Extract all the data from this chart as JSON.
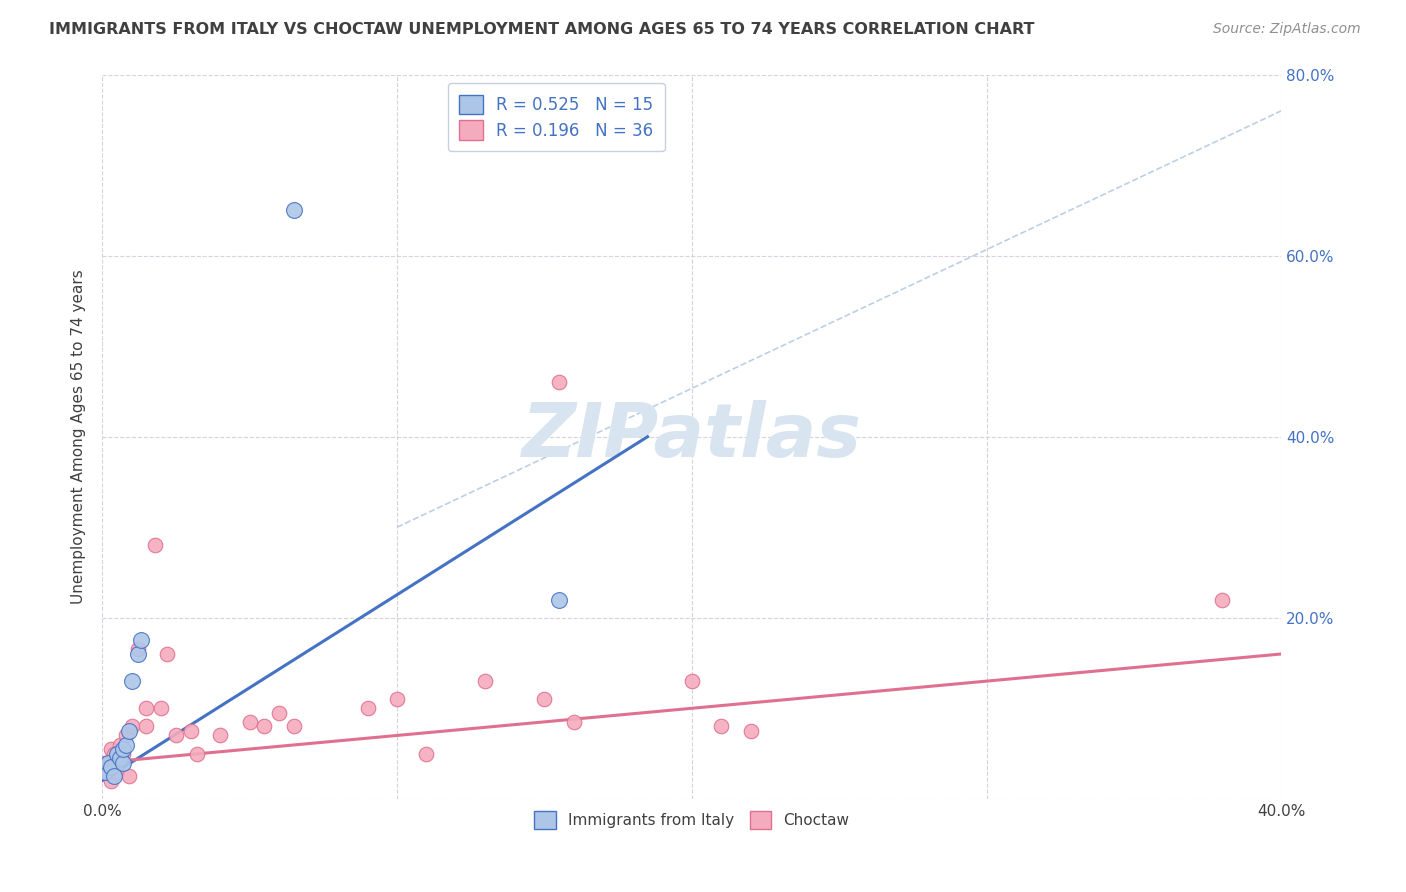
{
  "title": "IMMIGRANTS FROM ITALY VS CHOCTAW UNEMPLOYMENT AMONG AGES 65 TO 74 YEARS CORRELATION CHART",
  "source": "Source: ZipAtlas.com",
  "ylabel": "Unemployment Among Ages 65 to 74 years",
  "xlim": [
    0.0,
    0.4
  ],
  "ylim": [
    0.0,
    0.8
  ],
  "xtick_values": [
    0.0,
    0.1,
    0.2,
    0.3,
    0.4
  ],
  "xtick_labels": [
    "0.0%",
    "",
    "",
    "",
    "40.0%"
  ],
  "ytick_values": [
    0.0,
    0.2,
    0.4,
    0.6,
    0.8
  ],
  "ytick_labels_right": [
    "",
    "20.0%",
    "40.0%",
    "60.0%",
    "80.0%"
  ],
  "blue_R": "0.525",
  "blue_N": "15",
  "pink_R": "0.196",
  "pink_N": "36",
  "blue_scatter_x": [
    0.001,
    0.002,
    0.003,
    0.004,
    0.005,
    0.006,
    0.007,
    0.007,
    0.008,
    0.009,
    0.01,
    0.012,
    0.013,
    0.065,
    0.155
  ],
  "blue_scatter_y": [
    0.03,
    0.04,
    0.035,
    0.025,
    0.05,
    0.045,
    0.04,
    0.055,
    0.06,
    0.075,
    0.13,
    0.16,
    0.175,
    0.65,
    0.22
  ],
  "pink_scatter_x": [
    0.001,
    0.002,
    0.003,
    0.003,
    0.004,
    0.005,
    0.006,
    0.007,
    0.008,
    0.009,
    0.01,
    0.012,
    0.015,
    0.015,
    0.018,
    0.02,
    0.022,
    0.025,
    0.03,
    0.032,
    0.04,
    0.05,
    0.055,
    0.06,
    0.065,
    0.09,
    0.1,
    0.11,
    0.13,
    0.15,
    0.155,
    0.16,
    0.2,
    0.21,
    0.22,
    0.38
  ],
  "pink_scatter_y": [
    0.04,
    0.03,
    0.055,
    0.02,
    0.05,
    0.03,
    0.06,
    0.05,
    0.07,
    0.025,
    0.08,
    0.165,
    0.08,
    0.1,
    0.28,
    0.1,
    0.16,
    0.07,
    0.075,
    0.05,
    0.07,
    0.085,
    0.08,
    0.095,
    0.08,
    0.1,
    0.11,
    0.05,
    0.13,
    0.11,
    0.46,
    0.085,
    0.13,
    0.08,
    0.075,
    0.22
  ],
  "blue_line_x": [
    0.0,
    0.185
  ],
  "blue_line_y": [
    0.02,
    0.4
  ],
  "pink_line_x": [
    0.0,
    0.4
  ],
  "pink_line_y": [
    0.04,
    0.16
  ],
  "dashed_line_x": [
    0.1,
    0.4
  ],
  "dashed_line_y": [
    0.3,
    0.76
  ],
  "blue_dot_color": "#adc6e8",
  "pink_dot_color": "#f5abbe",
  "blue_line_color": "#4472c4",
  "pink_line_color": "#e07090",
  "dashed_line_color": "#b0c8e0",
  "title_color": "#404040",
  "source_color": "#909090",
  "watermark_color": "#d8e4f0",
  "background_color": "#ffffff",
  "grid_color": "#d0d0dc",
  "right_axis_color": "#4472c4",
  "legend_edge_color": "#c8d0e0"
}
